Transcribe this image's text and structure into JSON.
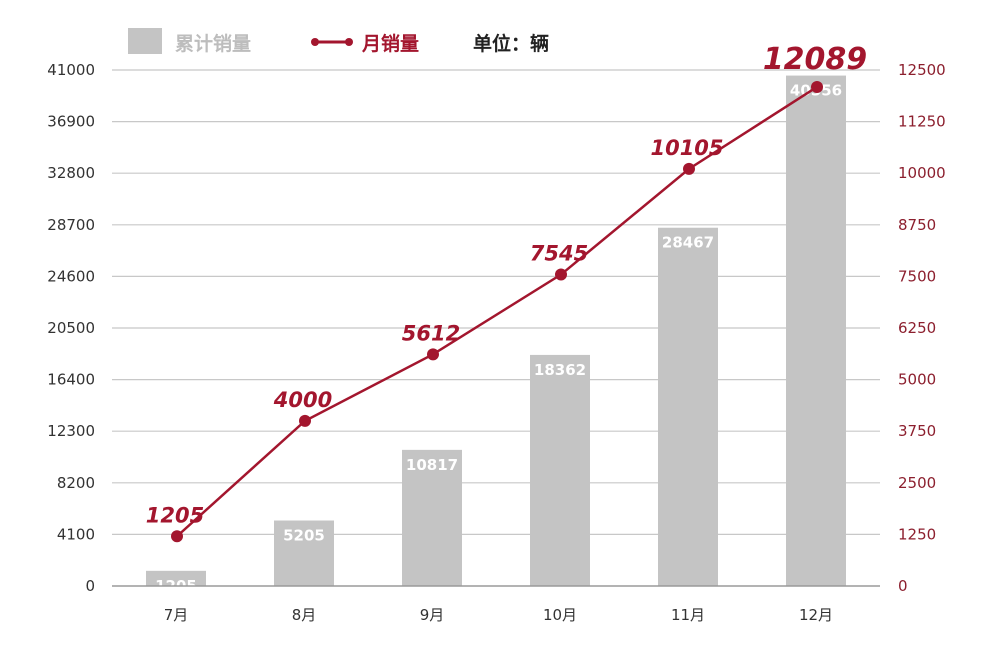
{
  "chart_data": {
    "type": "bar",
    "categories": [
      "7月",
      "8月",
      "9月",
      "10月",
      "11月",
      "12月"
    ],
    "series": [
      {
        "name": "累计销量",
        "type": "bar",
        "axis": "left",
        "values": [
          1205,
          5205,
          10817,
          18362,
          28467,
          40556
        ]
      },
      {
        "name": "月销量",
        "type": "line",
        "axis": "right",
        "values": [
          1205,
          4000,
          5612,
          7545,
          10105,
          12089
        ]
      }
    ],
    "unit_label": "单位：辆",
    "y_left": {
      "ticks": [
        "0",
        "4100",
        "8200",
        "12300",
        "16400",
        "20500",
        "24600",
        "28700",
        "32800",
        "36900",
        "41000"
      ],
      "ylim": [
        0,
        41000
      ]
    },
    "y_right": {
      "ticks": [
        "0",
        "1250",
        "2500",
        "3750",
        "5000",
        "6250",
        "7500",
        "8750",
        "10000",
        "11250",
        "12500"
      ],
      "ylim": [
        0,
        12500
      ]
    },
    "grid": true,
    "legend": "top-left",
    "colors": {
      "bar": "#c4c4c4",
      "line": "#a3162e",
      "grid": "#c8c8c8"
    }
  }
}
